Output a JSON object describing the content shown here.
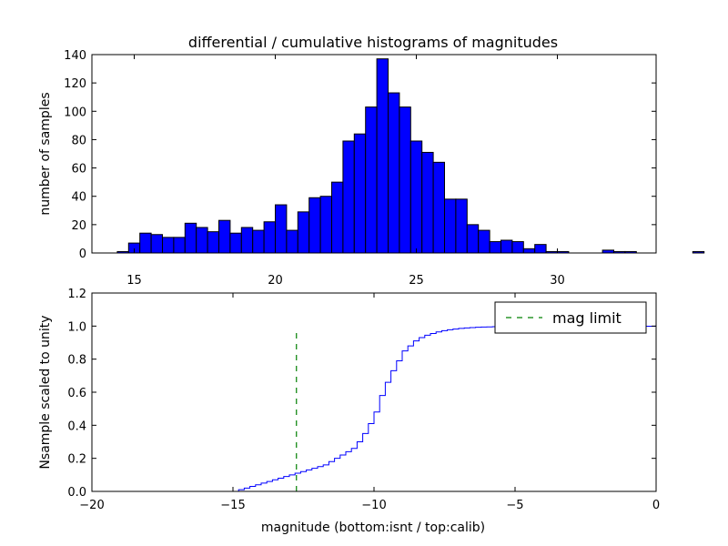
{
  "chart_data": [
    {
      "type": "bar",
      "subtype": "histogram",
      "title": "differential / cumulative histograms of magnitudes",
      "xlabel": "",
      "ylabel": "number of samples",
      "xlim": [
        13.5,
        33.5
      ],
      "ylim": [
        0,
        140
      ],
      "xticks": [
        15,
        20,
        25,
        30
      ],
      "yticks": [
        0,
        20,
        40,
        60,
        80,
        100,
        120,
        140
      ],
      "bin_start": 14.0,
      "bin_width": 0.4,
      "values": [
        0,
        1,
        7,
        14,
        13,
        11,
        11,
        21,
        18,
        15,
        23,
        14,
        18,
        16,
        22,
        34,
        16,
        29,
        39,
        40,
        50,
        79,
        84,
        103,
        137,
        113,
        103,
        79,
        71,
        64,
        38,
        38,
        20,
        16,
        8,
        9,
        8,
        3,
        6,
        1,
        1,
        0,
        0,
        0,
        2,
        1,
        1,
        0,
        0,
        0,
        0,
        0,
        1
      ],
      "color": "#0000ff",
      "edgecolor": "#000000"
    },
    {
      "type": "line",
      "subtype": "step",
      "title": "",
      "xlabel": "magnitude (bottom:isnt / top:calib)",
      "ylabel": "Nsample scaled to unity",
      "xlim": [
        -20,
        0
      ],
      "ylim": [
        0.0,
        1.2
      ],
      "xticks": [
        -20,
        -15,
        -10,
        -5,
        0
      ],
      "xtick_labels": [
        "−20",
        "−15",
        "−10",
        "−5",
        "0"
      ],
      "yticks": [
        0.0,
        0.2,
        0.4,
        0.6,
        0.8,
        1.0,
        1.2
      ],
      "ytick_labels": [
        "0.0",
        "0.2",
        "0.4",
        "0.6",
        "0.8",
        "1.0",
        "1.2"
      ],
      "series": [
        {
          "name": "cumulative",
          "color": "#0000ff",
          "x": [
            -20.0,
            -15.0,
            -14.8,
            -14.6,
            -14.4,
            -14.2,
            -14.0,
            -13.8,
            -13.6,
            -13.4,
            -13.2,
            -13.0,
            -12.8,
            -12.6,
            -12.4,
            -12.2,
            -12.0,
            -11.8,
            -11.6,
            -11.4,
            -11.2,
            -11.0,
            -10.8,
            -10.6,
            -10.4,
            -10.2,
            -10.0,
            -9.8,
            -9.6,
            -9.4,
            -9.2,
            -9.0,
            -8.8,
            -8.6,
            -8.4,
            -8.2,
            -8.0,
            -7.8,
            -7.6,
            -7.4,
            -7.2,
            -7.0,
            -6.8,
            -6.6,
            -6.4,
            -6.2,
            -6.0,
            -5.8,
            -5.6,
            -5.4,
            -5.2,
            -5.0,
            -4.8,
            -4.6,
            -4.4,
            -4.2,
            -4.0,
            -3.8,
            -3.6,
            -3.4,
            -3.2,
            -3.0,
            -2.8,
            -2.6,
            -2.4,
            -2.2,
            -2.0,
            -1.8,
            -1.6,
            -1.4,
            -1.2,
            -1.0,
            -0.8,
            -0.6,
            -0.4,
            -0.2,
            -0.02,
            0.0
          ],
          "y": [
            0.0,
            0.0,
            0.01,
            0.02,
            0.03,
            0.04,
            0.05,
            0.06,
            0.07,
            0.08,
            0.09,
            0.1,
            0.11,
            0.12,
            0.13,
            0.14,
            0.15,
            0.16,
            0.18,
            0.2,
            0.22,
            0.24,
            0.26,
            0.3,
            0.35,
            0.41,
            0.48,
            0.58,
            0.66,
            0.73,
            0.79,
            0.85,
            0.88,
            0.91,
            0.93,
            0.945,
            0.955,
            0.965,
            0.972,
            0.978,
            0.982,
            0.986,
            0.989,
            0.991,
            0.993,
            0.994,
            0.995,
            0.996,
            0.997,
            0.998,
            0.998,
            0.999,
            0.999,
            0.999,
            0.999,
            0.999,
            0.999,
            0.999,
            0.999,
            0.999,
            0.999,
            0.999,
            0.999,
            0.999,
            0.999,
            0.999,
            0.999,
            0.999,
            0.999,
            0.999,
            0.999,
            0.999,
            0.999,
            0.999,
            0.999,
            0.999,
            1.0,
            0.0
          ]
        },
        {
          "name": "mag limit",
          "style": "dashed",
          "color": "#008000",
          "x": [
            -12.75,
            -12.75
          ],
          "y": [
            0.0,
            0.97
          ]
        }
      ],
      "legend": {
        "entries": [
          "mag limit"
        ],
        "placement": "top-right"
      }
    }
  ]
}
